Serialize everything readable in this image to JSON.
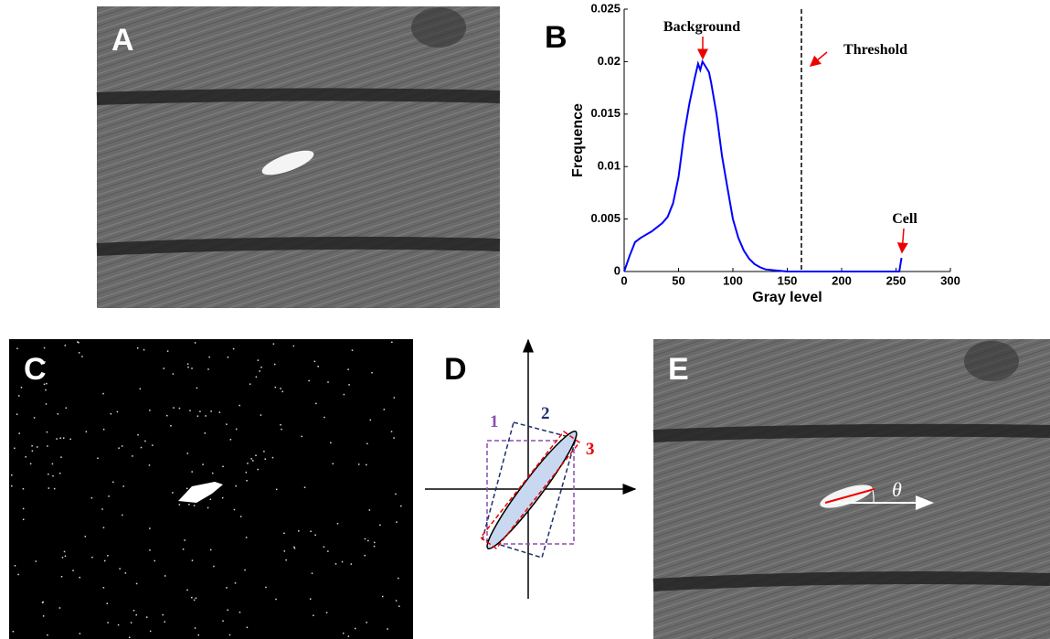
{
  "panels": [
    {
      "label": "A"
    },
    {
      "label": "B"
    },
    {
      "label": "C"
    },
    {
      "label": "D"
    },
    {
      "label": "E"
    }
  ],
  "diagram": {
    "labels": [
      "1",
      "2",
      "3"
    ]
  },
  "angle_label": "θ",
  "chart_data": {
    "type": "line",
    "xlabel": "Gray level",
    "ylabel": "Frequence",
    "annotations": [
      "Background",
      "Threshold",
      "Cell"
    ],
    "x": [
      0,
      5,
      10,
      15,
      20,
      25,
      30,
      35,
      40,
      45,
      50,
      55,
      60,
      65,
      68,
      70,
      72,
      75,
      78,
      80,
      85,
      90,
      95,
      100,
      105,
      110,
      115,
      120,
      125,
      130,
      140,
      150,
      200,
      250,
      253,
      255
    ],
    "values": [
      0,
      0.0015,
      0.0028,
      0.0032,
      0.0035,
      0.0038,
      0.0042,
      0.0046,
      0.0052,
      0.0065,
      0.009,
      0.013,
      0.016,
      0.0185,
      0.0198,
      0.0192,
      0.02,
      0.0195,
      0.019,
      0.018,
      0.015,
      0.011,
      0.008,
      0.005,
      0.0032,
      0.002,
      0.0012,
      0.0007,
      0.0004,
      0.0002,
      0.0001,
      0,
      0,
      0,
      0,
      0.0013
    ],
    "color": "#0000ff",
    "threshold": 163,
    "xlim": [
      0,
      300
    ],
    "xticks": [
      0,
      50,
      100,
      150,
      200,
      250,
      300
    ],
    "ylim": [
      0,
      0.025
    ],
    "yticks": [
      0,
      0.005,
      0.01,
      0.015,
      0.02,
      0.025
    ]
  }
}
